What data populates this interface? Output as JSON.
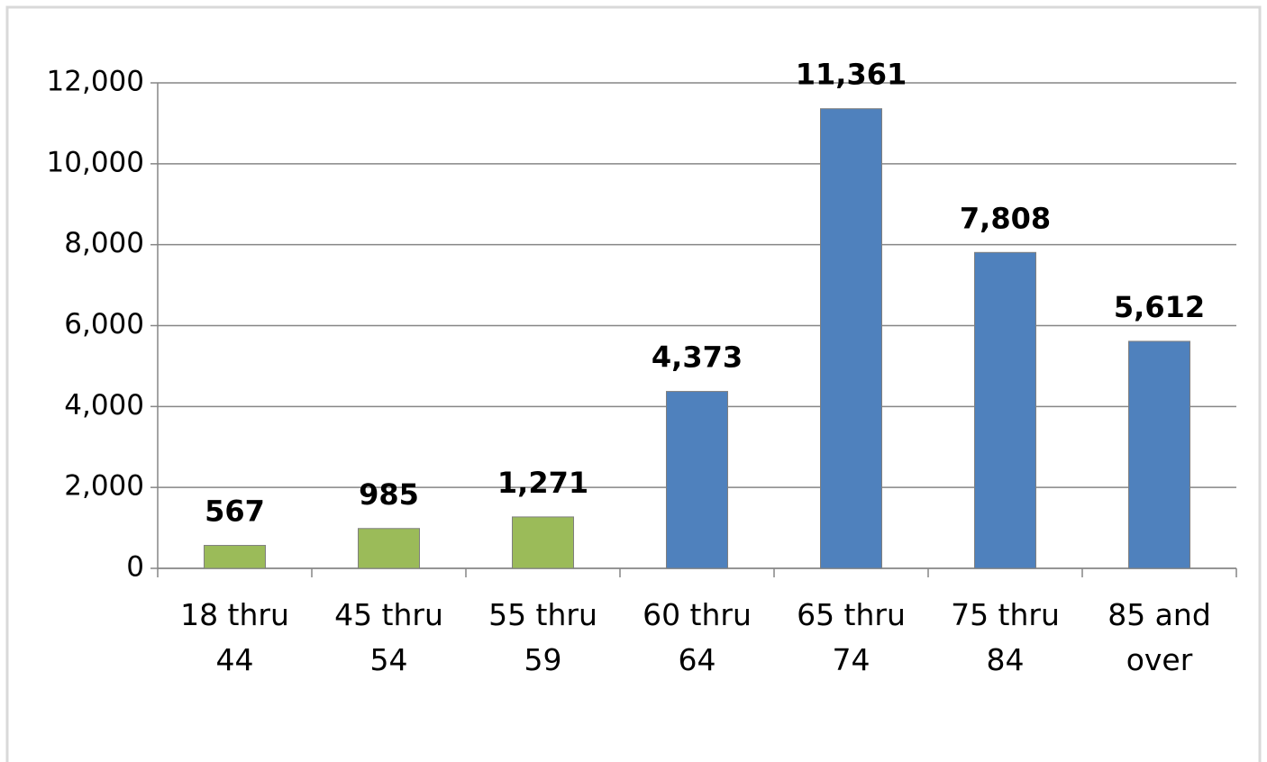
{
  "chart_data": {
    "type": "bar",
    "categories": [
      "18 thru 44",
      "45 thru 54",
      "55 thru 59",
      "60 thru 64",
      "65 thru 74",
      "75 thru 84",
      "85 and over"
    ],
    "values": [
      567,
      985,
      1271,
      4373,
      11361,
      7808,
      5612
    ],
    "value_labels": [
      "567",
      "985",
      "1,271",
      "4,373",
      "11,361",
      "7,808",
      "5,612"
    ],
    "colors": [
      "#9bbb59",
      "#9bbb59",
      "#9bbb59",
      "#4f81bd",
      "#4f81bd",
      "#4f81bd",
      "#4f81bd"
    ],
    "ylim": [
      0,
      12000
    ],
    "yticks": [
      0,
      {
        "value": 2000,
        "label": "2,000"
      },
      {
        "value": 4000,
        "label": "4,000"
      },
      {
        "value": 6000,
        "label": "6,000"
      },
      {
        "value": 8000,
        "label": "8,000"
      },
      {
        "value": 10000,
        "label": "10,000"
      },
      {
        "value": 12000,
        "label": "12,000"
      }
    ],
    "grid": true
  }
}
